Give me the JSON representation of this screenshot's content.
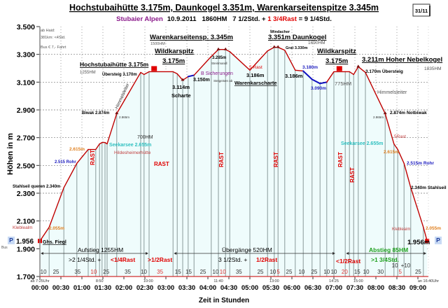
{
  "header": {
    "title": "Hochstubaihütte 3.175m, Daunkogel 3.351m, Warenkarseitenspitze 3.345m",
    "subtitle_region": "Stubaier Alpen",
    "subtitle_stats": "10.9.2011   1860HM   7 1/2Std. + ",
    "subtitle_rest": "1 3/4Rast",
    "subtitle_total": " = 9 1/4Std.",
    "page_badge": "31/11",
    "colors": {
      "region": "#8b1a8b",
      "rest": "#e00000"
    }
  },
  "chart_data": {
    "type": "area",
    "title": "Hochstubaihütte 3.175m, Daunkogel 3.351m, Warenkarseitenspitze 3.345m",
    "xlabel": "Zeit in Stunden",
    "ylabel": "Höhen in m",
    "ylim": [
      1700,
      3500
    ],
    "xlim_hours": [
      0,
      9.25
    ],
    "grid": true,
    "y_ticks": [
      "3.500",
      "3.300",
      "3.100",
      "2.900",
      "2.700",
      "2.500",
      "2.300",
      "2.100",
      "1.900",
      "1.700"
    ],
    "y_tick_values": [
      3500,
      3300,
      3100,
      2900,
      2700,
      2500,
      2300,
      2100,
      1900,
      1700
    ],
    "x_ticks": [
      "00:00",
      "00:30",
      "01:00",
      "01:30",
      "02:00",
      "02:30",
      "03:00",
      "03:30",
      "04:00",
      "04:30",
      "05:00",
      "05:30",
      "06:00",
      "06:30",
      "07:00",
      "07:30",
      "08:00",
      "08:30",
      "09:00"
    ],
    "clock_times": [
      {
        "label": "ab 7:25Uhr",
        "hours": 0
      },
      {
        "label": "8:50",
        "hours": 1.42
      },
      {
        "label": "10:00",
        "hours": 2.58
      },
      {
        "label": "11:40",
        "hours": 4.25
      },
      {
        "label": "13:00",
        "hours": 5.58
      },
      {
        "label": "14:25",
        "hours": 7.0
      },
      {
        "label": "15:00",
        "hours": 7.58
      },
      {
        "label": "an 16:40Uhr",
        "hours": 9.25
      }
    ],
    "profile": {
      "hours": [
        0,
        0.22,
        0.57,
        0.88,
        1.15,
        1.33,
        1.42,
        1.48,
        1.55,
        1.6,
        1.83,
        2.4,
        2.48,
        2.6,
        3.17,
        3.27,
        3.4,
        3.53,
        3.67,
        4.08,
        4.25,
        4.42,
        4.52,
        5.0,
        5.42,
        5.58,
        5.67,
        5.83,
        6.08,
        6.27,
        6.48,
        6.67,
        6.83,
        7.0,
        7.27,
        7.37,
        7.47,
        7.58,
        7.75,
        8.22,
        8.43,
        8.52,
        8.67,
        8.83,
        9.13,
        9.22
      ],
      "elevation": [
        1956,
        2055,
        2340,
        2515,
        2615,
        2615,
        2655,
        2665,
        2665,
        2655,
        2874,
        3170,
        3155,
        3175,
        3175,
        3160,
        3114,
        3140,
        3150,
        3285,
        3335,
        3335,
        3320,
        3186,
        3325,
        3351,
        3351,
        3330,
        3186,
        3180,
        3120,
        3090,
        3100,
        3175,
        3175,
        3175,
        3155,
        3211,
        3170,
        2874,
        2655,
        2615,
        2515,
        2340,
        2055,
        1956
      ]
    },
    "blue_sections_hours": [
      [
        3.53,
        3.67
      ],
      [
        6.27,
        6.83
      ]
    ],
    "segment_minutes": [
      {
        "v": "10",
        "rest": false
      },
      {
        "v": "25",
        "rest": false
      },
      {
        "v": "35",
        "rest": false
      },
      {
        "v": "10",
        "rest": true
      },
      {
        "v": "25",
        "rest": false
      },
      {
        "v": "35",
        "rest": false
      },
      {
        "v": "10",
        "rest": false
      },
      {
        "v": "35",
        "rest": true
      },
      {
        "v": "15",
        "rest": false
      },
      {
        "v": "15",
        "rest": false
      },
      {
        "v": "25",
        "rest": false
      },
      {
        "v": "10",
        "rest": false
      },
      {
        "v": "10",
        "rest": true
      },
      {
        "v": "35",
        "rest": false
      },
      {
        "v": "25",
        "rest": false
      },
      {
        "v": "10",
        "rest": false
      },
      {
        "v": "5",
        "rest": true
      },
      {
        "v": "25",
        "rest": false
      },
      {
        "v": "10",
        "rest": false
      },
      {
        "v": "25",
        "rest": false
      },
      {
        "v": "10",
        "rest": false
      },
      {
        "v": "10",
        "rest": false
      },
      {
        "v": "20",
        "rest": true
      },
      {
        "v": "15",
        "rest": false
      },
      {
        "v": "10",
        "rest": false
      },
      {
        "v": "30",
        "rest": false
      },
      {
        "v": "10",
        "rest": false
      },
      {
        "v": "5",
        "rest": true
      },
      {
        "v": "+10",
        "rest": false
      },
      {
        "v": "25",
        "rest": false
      }
    ],
    "colors": {
      "line": "#c00000",
      "blue_section": "#1010c0",
      "fill": "#effcfc",
      "grid": "#777777"
    }
  },
  "annotations": [
    {
      "text": "ab Haid:",
      "color": "#555555"
    },
    {
      "text": "381km: <4Std.",
      "color": "#555555"
    },
    {
      "text": "Bus € 7,- Fahrt",
      "color": "#555555"
    },
    {
      "text": "Hochstubaihütte 3.175m",
      "color": "#000000"
    },
    {
      "text": "1255HM",
      "color": "#555555"
    },
    {
      "text": "Übersteig 3.170m",
      "color": "#000000"
    },
    {
      "text": "Himmelsleiter",
      "color": "#333333"
    },
    {
      "text": "Biwak 2.874m",
      "color": "#000000"
    },
    {
      "text": "2.865m",
      "color": "#333333"
    },
    {
      "text": "700HM",
      "color": "#333333"
    },
    {
      "text": "Seekarsee 2.655m",
      "color": "#30c0c0"
    },
    {
      "text": "Hildesheimerhütte",
      "color": "#c04040"
    },
    {
      "text": "2.615m",
      "color": "#e08020"
    },
    {
      "text": "2.515 Rohr",
      "color": "#2020c0"
    },
    {
      "text": "Stahlseil queren 2.340m",
      "color": "#000000"
    },
    {
      "text": "Kleblealm",
      "color": "#c04040"
    },
    {
      "text": "2.055m",
      "color": "#e08020"
    },
    {
      "text": "RAST",
      "color": "#e00000"
    },
    {
      "text": "RAST",
      "color": "#e00000"
    },
    {
      "text": "RAST",
      "color": "#e00000"
    },
    {
      "text": "RAST",
      "color": "#e00000"
    },
    {
      "text": "RAST",
      "color": "#e00000"
    },
    {
      "text": "RAST",
      "color": "#e00000"
    },
    {
      "text": "Warenkarseitensp. 3.345m",
      "color": "#000000"
    },
    {
      "text": "1500HM",
      "color": "#555555"
    },
    {
      "text": "Wildkarspitz",
      "color": "#000000"
    },
    {
      "text": "3.175m",
      "color": "#000000"
    },
    {
      "text": "3.114m",
      "color": "#000000"
    },
    {
      "text": "Scharte",
      "color": "#000000"
    },
    {
      "text": "B Sicherungen",
      "color": "#8b1a8b"
    },
    {
      "text": "3.150m",
      "color": "#000000"
    },
    {
      "text": "Steigeisen ab",
      "color": "#333333"
    },
    {
      "text": "3.285m",
      "color": "#000000"
    },
    {
      "text": "Steinmandl",
      "color": "#333333"
    },
    {
      "text": "3.186m",
      "color": "#000000"
    },
    {
      "text": "Warenkarscharte",
      "color": "#000000"
    },
    {
      "text": "5 Rast",
      "color": "#e00000"
    },
    {
      "text": "Windacher",
      "color": "#000000"
    },
    {
      "text": "3.351m Daunkogel",
      "color": "#000000"
    },
    {
      "text": "1690HM",
      "color": "#555555"
    },
    {
      "text": "Grat 3.330m",
      "color": "#000000"
    },
    {
      "text": "3.186m",
      "color": "#000000"
    },
    {
      "text": "3.180m",
      "color": "#2020c0"
    },
    {
      "text": "3.090m",
      "color": "#2020c0"
    },
    {
      "text": "Wildkarspitz",
      "color": "#000000"
    },
    {
      "text": "3.175m",
      "color": "#000000"
    },
    {
      "text": "775HM",
      "color": "#555555"
    },
    {
      "text": "3.211m Hoher Nebelkogel",
      "color": "#000000"
    },
    {
      "text": "1835HM",
      "color": "#555555"
    },
    {
      "text": "3.170m Übersteig",
      "color": "#000000"
    },
    {
      "text": "Himmelsleiter",
      "color": "#555555"
    },
    {
      "text": "2.874m Notbiwak",
      "color": "#000000"
    },
    {
      "text": "2.865m",
      "color": "#333333"
    },
    {
      "text": "5Rast",
      "color": "#c04040"
    },
    {
      "text": "Seekarsee 2.655m",
      "color": "#30c0c0"
    },
    {
      "text": "2.615m",
      "color": "#e08020"
    },
    {
      "text": "2.515m Rohr",
      "color": "#2020c0"
    },
    {
      "text": "2.340m Stahlseil",
      "color": "#000000"
    },
    {
      "text": "Klebleaim",
      "color": "#c04040"
    },
    {
      "text": "2.055m",
      "color": "#e08020"
    },
    {
      "text": "Ghs. Fiegl",
      "color": "#000000"
    },
    {
      "text": "1.956",
      "color": "#000000"
    },
    {
      "text": "Bus",
      "color": "#555555"
    },
    {
      "text": "1.956m",
      "color": "#000000"
    },
    {
      "text": "P",
      "color": "#1a3a9a"
    },
    {
      "text": "P",
      "color": "#1a3a9a"
    },
    {
      "text": "Aufstieg 1255HM",
      "color": "#000000"
    },
    {
      "text": ">2 1/4Std.  +",
      "color": "#000000"
    },
    {
      "text": "<1/4Rast",
      "color": "#e00000"
    },
    {
      "text": ">1/2Rast",
      "color": "#e00000"
    },
    {
      "text": "Übergänge 520HM",
      "color": "#000000"
    },
    {
      "text": "3 1/2Std. +",
      "color": "#000000"
    },
    {
      "text": "1/2Rast",
      "color": "#e00000"
    },
    {
      "text": "<1/2Rast",
      "color": "#e00000"
    },
    {
      "text": "Abstieg 85HM",
      "color": "#20a020"
    },
    {
      "text": ">1 3/4Std.",
      "color": "#20a020"
    }
  ]
}
